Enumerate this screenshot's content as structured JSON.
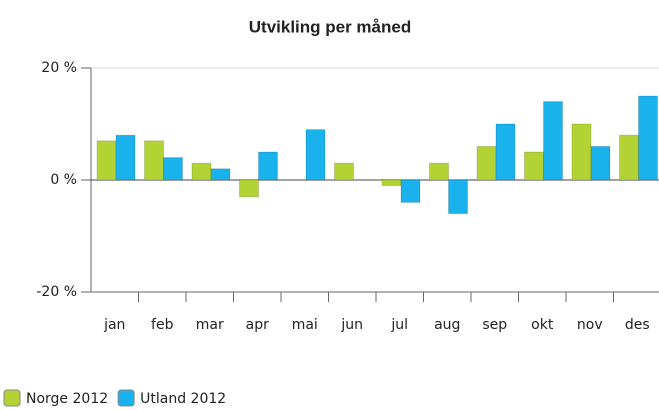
{
  "chart_data": {
    "type": "bar",
    "title": "Utvikling per måned",
    "categories": [
      "jan",
      "feb",
      "mar",
      "apr",
      "mai",
      "jun",
      "jul",
      "aug",
      "sep",
      "okt",
      "nov",
      "des"
    ],
    "series": [
      {
        "name": "Norge 2012",
        "color": "#b3d335",
        "values": [
          7,
          7,
          3,
          -3,
          0,
          3,
          -1,
          3,
          6,
          5,
          10,
          8
        ]
      },
      {
        "name": "Utland 2012",
        "color": "#1ab2ec",
        "values": [
          8,
          4,
          2,
          5,
          9,
          0,
          -4,
          -6,
          10,
          14,
          6,
          15
        ]
      }
    ],
    "ylim": [
      -20,
      20
    ],
    "yticks": [
      {
        "value": -20,
        "label": "-20 %"
      },
      {
        "value": 0,
        "label": "0 %"
      },
      {
        "value": 20,
        "label": "20 %"
      }
    ],
    "grid": true,
    "legend": "bottom-left"
  }
}
